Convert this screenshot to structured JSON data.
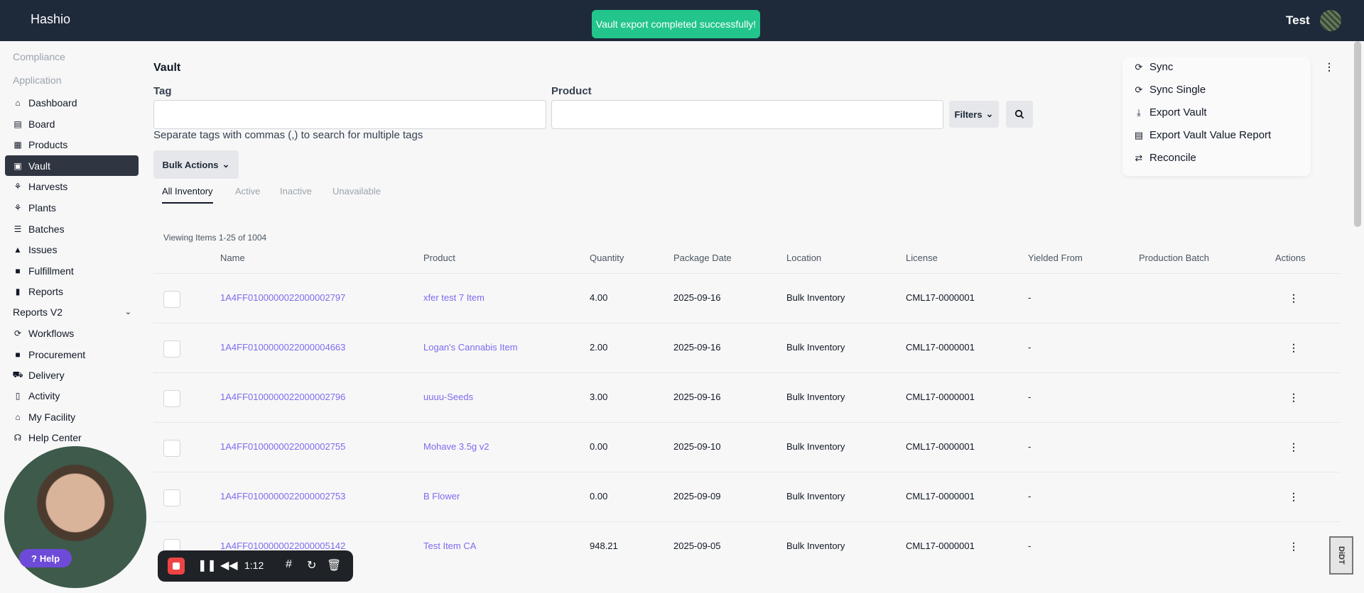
{
  "header": {
    "brand": "Hashio",
    "user_name": "Test"
  },
  "toast": {
    "message": "Vault export completed successfully!"
  },
  "sidebar": {
    "sections": [
      {
        "label": "Compliance"
      },
      {
        "label": "Application"
      }
    ],
    "items": [
      {
        "label": "Dashboard",
        "icon": "home-icon",
        "active": false
      },
      {
        "label": "Board",
        "icon": "board-icon",
        "active": false
      },
      {
        "label": "Products",
        "icon": "products-icon",
        "active": false
      },
      {
        "label": "Vault",
        "icon": "vault-icon",
        "active": true
      },
      {
        "label": "Harvests",
        "icon": "harvest-icon",
        "active": false
      },
      {
        "label": "Plants",
        "icon": "plant-icon",
        "active": false
      },
      {
        "label": "Batches",
        "icon": "batches-icon",
        "active": false
      },
      {
        "label": "Issues",
        "icon": "warning-icon",
        "active": false
      },
      {
        "label": "Fulfillment",
        "icon": "fulfillment-icon",
        "active": false
      },
      {
        "label": "Reports",
        "icon": "chart-icon",
        "active": false
      },
      {
        "label": "Reports V2",
        "icon": "",
        "active": false
      },
      {
        "label": "Workflows",
        "icon": "workflow-icon",
        "active": false
      },
      {
        "label": "Procurement",
        "icon": "bag-icon",
        "active": false
      },
      {
        "label": "Delivery",
        "icon": "truck-icon",
        "active": false
      },
      {
        "label": "Activity",
        "icon": "activity-icon",
        "active": false
      },
      {
        "label": "My Facility",
        "icon": "facility-icon",
        "active": false
      },
      {
        "label": "Help Center",
        "icon": "headset-icon",
        "active": false
      }
    ]
  },
  "page": {
    "title": "Vault",
    "tag_label": "Tag",
    "product_label": "Product",
    "filters_label": "Filters",
    "tag_hint": "Separate tags with commas (,) to search for multiple tags",
    "bulk_actions_label": "Bulk Actions"
  },
  "tabs": [
    {
      "label": "All Inventory",
      "active": true
    },
    {
      "label": "Active",
      "active": false
    },
    {
      "label": "Inactive",
      "active": false
    },
    {
      "label": "Unavailable",
      "active": false
    }
  ],
  "table": {
    "viewing_text": "Viewing Items 1-25 of 1004",
    "columns": [
      "Name",
      "Product",
      "Quantity",
      "Package Date",
      "Location",
      "License",
      "Yielded From",
      "Production Batch",
      "Actions"
    ],
    "rows": [
      {
        "name": "1A4FF0100000022000002797",
        "product": "xfer test 7 Item",
        "quantity": "4.00",
        "package_date": "2025-09-16",
        "location": "Bulk Inventory",
        "license": "CML17-0000001",
        "yielded_from": "-"
      },
      {
        "name": "1A4FF0100000022000004663",
        "product": "Logan's Cannabis Item",
        "quantity": "2.00",
        "package_date": "2025-09-16",
        "location": "Bulk Inventory",
        "license": "CML17-0000001",
        "yielded_from": "-"
      },
      {
        "name": "1A4FF0100000022000002796",
        "product": "uuuu-Seeds",
        "quantity": "3.00",
        "package_date": "2025-09-16",
        "location": "Bulk Inventory",
        "license": "CML17-0000001",
        "yielded_from": "-"
      },
      {
        "name": "1A4FF0100000022000002755",
        "product": "Mohave 3.5g v2",
        "quantity": "0.00",
        "package_date": "2025-09-10",
        "location": "Bulk Inventory",
        "license": "CML17-0000001",
        "yielded_from": "-"
      },
      {
        "name": "1A4FF0100000022000002753",
        "product": "B Flower",
        "quantity": "0.00",
        "package_date": "2025-09-09",
        "location": "Bulk Inventory",
        "license": "CML17-0000001",
        "yielded_from": "-"
      },
      {
        "name": "1A4FF0100000022000005142",
        "product": "Test Item CA",
        "quantity": "948.21",
        "package_date": "2025-09-05",
        "location": "Bulk Inventory",
        "license": "CML17-0000001",
        "yielded_from": "-"
      }
    ]
  },
  "actions_menu": {
    "items": [
      {
        "label": "Sync",
        "icon": "sync-icon"
      },
      {
        "label": "Sync Single",
        "icon": "sync-icon"
      },
      {
        "label": "Export Vault",
        "icon": "download-icon"
      },
      {
        "label": "Export Vault Value Report",
        "icon": "report-icon"
      },
      {
        "label": "Reconcile",
        "icon": "reconcile-icon"
      }
    ]
  },
  "overlay": {
    "help_label": "Help",
    "recorder_time": "1:12",
    "corner_badge": "DiDT"
  }
}
